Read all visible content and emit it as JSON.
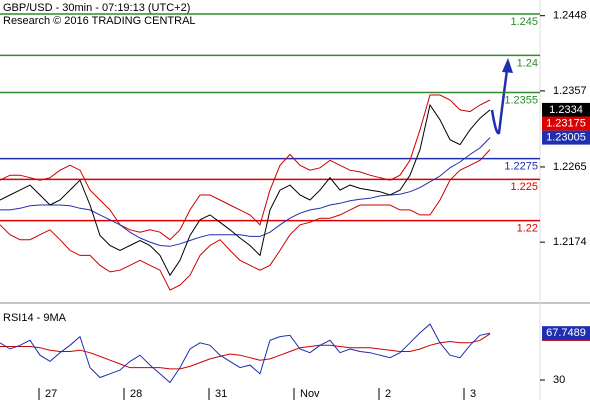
{
  "header": {
    "title": "GBP/USD - 30min - 07:19:13 (UTC+2)",
    "subtitle": "Research © 2016 TRADING CENTRAL"
  },
  "chart_data": [
    {
      "type": "line",
      "xlim": [
        0,
        54
      ],
      "ylim": [
        1.2104,
        1.2467
      ],
      "yticks": [
        1.2174,
        1.2265,
        1.2357,
        1.2448
      ],
      "x": [
        0,
        1,
        2,
        3,
        4,
        5,
        6,
        7,
        8,
        9,
        10,
        11,
        12,
        13,
        14,
        15,
        16,
        17,
        18,
        19,
        20,
        21,
        22,
        23,
        24,
        25,
        26,
        27,
        28,
        29,
        30,
        31,
        32,
        33,
        34,
        35,
        36,
        37,
        38,
        39,
        40,
        41,
        42,
        43,
        44,
        45,
        46,
        47,
        48,
        49
      ],
      "series": [
        {
          "color": "#cc0000",
          "values": [
            1.2249,
            1.2255,
            1.2255,
            1.2252,
            1.2249,
            1.2252,
            1.2261,
            1.2267,
            1.2261,
            1.2237,
            1.2225,
            1.2213,
            1.2195,
            1.2189,
            1.2186,
            1.2189,
            1.2186,
            1.2177,
            1.2189,
            1.2213,
            1.2231,
            1.2231,
            1.2225,
            1.2219,
            1.2213,
            1.2207,
            1.2195,
            1.2237,
            1.2267,
            1.228,
            1.2267,
            1.2261,
            1.2264,
            1.2273,
            1.2267,
            1.2261,
            1.2259,
            1.2255,
            1.2252,
            1.2249,
            1.2255,
            1.2273,
            1.231,
            1.2352,
            1.2352,
            1.2346,
            1.2334,
            1.2332,
            1.234,
            1.2346
          ]
        },
        {
          "color": "#cc0000",
          "values": [
            1.2195,
            1.2183,
            1.2177,
            1.2177,
            1.2183,
            1.2189,
            1.2177,
            1.2164,
            1.2158,
            1.2158,
            1.2146,
            1.2138,
            1.214,
            1.2146,
            1.2152,
            1.2146,
            1.214,
            1.2116,
            1.2122,
            1.2134,
            1.2158,
            1.217,
            1.2177,
            1.2164,
            1.2152,
            1.2146,
            1.214,
            1.2146,
            1.2164,
            1.2183,
            1.2195,
            1.2198,
            1.2203,
            1.2203,
            1.2207,
            1.2213,
            1.2219,
            1.2219,
            1.2219,
            1.2219,
            1.2213,
            1.2213,
            1.2207,
            1.2207,
            1.2225,
            1.2249,
            1.2261,
            1.2267,
            1.2273,
            1.2286
          ]
        },
        {
          "color": "#1f2fb0",
          "last_tag": true,
          "values": [
            1.2213,
            1.2213,
            1.2215,
            1.2218,
            1.2219,
            1.2219,
            1.2219,
            1.2218,
            1.2215,
            1.2213,
            1.2207,
            1.2201,
            1.2195,
            1.2186,
            1.2179,
            1.2174,
            1.217,
            1.2169,
            1.2172,
            1.2176,
            1.218,
            1.2183,
            1.2183,
            1.2183,
            1.2183,
            1.2181,
            1.2181,
            1.2186,
            1.2195,
            1.2203,
            1.2209,
            1.2213,
            1.2215,
            1.2219,
            1.2221,
            1.2224,
            1.2226,
            1.2227,
            1.223,
            1.2231,
            1.2232,
            1.2235,
            1.224,
            1.2247,
            1.2254,
            1.2264,
            1.2271,
            1.228,
            1.2288,
            1.23005
          ]
        },
        {
          "color": "#000000",
          "last_tag": true,
          "values": [
            1.2225,
            1.2231,
            1.2237,
            1.2243,
            1.2231,
            1.2219,
            1.2225,
            1.2237,
            1.2249,
            1.2219,
            1.2182,
            1.217,
            1.2164,
            1.217,
            1.2176,
            1.217,
            1.2158,
            1.2134,
            1.2152,
            1.2182,
            1.2201,
            1.2207,
            1.2198,
            1.2189,
            1.2179,
            1.217,
            1.2158,
            1.2213,
            1.2237,
            1.2243,
            1.2231,
            1.2225,
            1.2237,
            1.2252,
            1.2237,
            1.2243,
            1.2239,
            1.2237,
            1.2235,
            1.2231,
            1.2237,
            1.2255,
            1.2286,
            1.234,
            1.2322,
            1.2298,
            1.2292,
            1.231,
            1.2324,
            1.2334
          ]
        }
      ],
      "levels": [
        {
          "value": 1.245,
          "color": "#2e8b2e"
        },
        {
          "value": 1.24,
          "color": "#2e8b2e"
        },
        {
          "value": 1.2355,
          "color": "#2e8b2e"
        },
        {
          "value": 1.2275,
          "color": "#1f2fb0"
        },
        {
          "value": 1.225,
          "color": "#dd0000"
        },
        {
          "value": 1.22,
          "color": "#dd0000"
        }
      ],
      "markers": [
        {
          "value": 1.23175,
          "color": "#dd0000"
        }
      ]
    },
    {
      "type": "line",
      "title": "RSI14 - 9MA",
      "xlim": [
        0,
        54
      ],
      "ylim": [
        26,
        88
      ],
      "yticks": [
        30
      ],
      "xticks": [
        {
          "value": 4.5,
          "label": "27"
        },
        {
          "value": 13,
          "label": "28"
        },
        {
          "value": 21.5,
          "label": "31"
        },
        {
          "value": 30,
          "label": "Nov"
        },
        {
          "value": 38.5,
          "label": "2"
        },
        {
          "value": 47,
          "label": "3"
        }
      ],
      "x": [
        0,
        1,
        2,
        3,
        4,
        5,
        6,
        7,
        8,
        9,
        10,
        11,
        12,
        13,
        14,
        15,
        16,
        17,
        18,
        19,
        20,
        21,
        22,
        23,
        24,
        25,
        26,
        27,
        28,
        29,
        30,
        31,
        32,
        33,
        34,
        35,
        36,
        37,
        38,
        39,
        40,
        41,
        42,
        43,
        44,
        45,
        46,
        47,
        48,
        49
      ],
      "series": [
        {
          "color": "#cc0000",
          "last_tag": true,
          "values": [
            57,
            57,
            57,
            57,
            56,
            54,
            53,
            53,
            54,
            52,
            49,
            46,
            43,
            40,
            40,
            40,
            40,
            39,
            39,
            41,
            44,
            47,
            49,
            51,
            50,
            48,
            46,
            47,
            50,
            53,
            56,
            57,
            58,
            58,
            57,
            56,
            56,
            56,
            55,
            54,
            53,
            53,
            55,
            58,
            60,
            61,
            60,
            60,
            62,
            67.1293
          ]
        },
        {
          "color": "#1f2fb0",
          "last_tag": true,
          "values": [
            60,
            55,
            58,
            62,
            50,
            45,
            52,
            58,
            65,
            40,
            32,
            35,
            38,
            45,
            50,
            42,
            35,
            28,
            40,
            55,
            60,
            58,
            50,
            45,
            40,
            42,
            35,
            62,
            65,
            66,
            55,
            52,
            58,
            62,
            52,
            55,
            53,
            52,
            50,
            48,
            52,
            60,
            68,
            75,
            60,
            50,
            48,
            58,
            66,
            67.7489
          ]
        }
      ]
    }
  ]
}
